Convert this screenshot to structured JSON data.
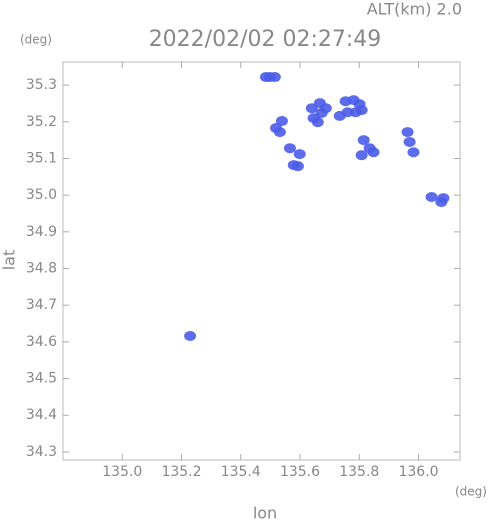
{
  "chart_data": {
    "type": "scatter",
    "header": "ALT(km) 2.0",
    "title": "2022/02/02 02:27:49",
    "y_unit": "(deg)",
    "x_unit": "(deg)",
    "xlabel": "lon",
    "ylabel": "lat",
    "color": "#4b5ce8",
    "xlim": [
      134.8,
      136.14
    ],
    "ylim": [
      34.278,
      35.363
    ],
    "xticks": [
      {
        "value": 135,
        "label": "135.0"
      },
      135.2,
      135.4,
      135.6,
      135.8,
      {
        "value": 136,
        "label": "136.0"
      }
    ],
    "yticks": [
      34.3,
      34.4,
      34.5,
      34.6,
      34.7,
      34.8,
      34.9,
      {
        "value": 35,
        "label": "35.0"
      },
      35.1,
      35.2,
      35.3
    ],
    "x": [
      135.485,
      135.498,
      135.515,
      135.519,
      135.532,
      135.539,
      135.64,
      135.667,
      135.673,
      135.646,
      135.66,
      135.687,
      135.754,
      135.781,
      135.801,
      135.761,
      135.788,
      135.734,
      135.808,
      135.815,
      135.835,
      135.848,
      135.808,
      135.963,
      135.97,
      135.983,
      136.044,
      136.077,
      136.084,
      135.579,
      135.593,
      135.599,
      135.566,
      135.229
    ],
    "y": [
      35.322,
      35.322,
      35.322,
      35.183,
      35.172,
      35.202,
      35.237,
      35.251,
      35.224,
      35.21,
      35.199,
      35.237,
      35.256,
      35.259,
      35.248,
      35.226,
      35.226,
      35.216,
      35.232,
      35.15,
      35.128,
      35.117,
      35.109,
      35.172,
      35.145,
      35.117,
      34.995,
      34.981,
      34.992,
      35.082,
      35.079,
      35.112,
      35.128,
      34.616
    ]
  }
}
